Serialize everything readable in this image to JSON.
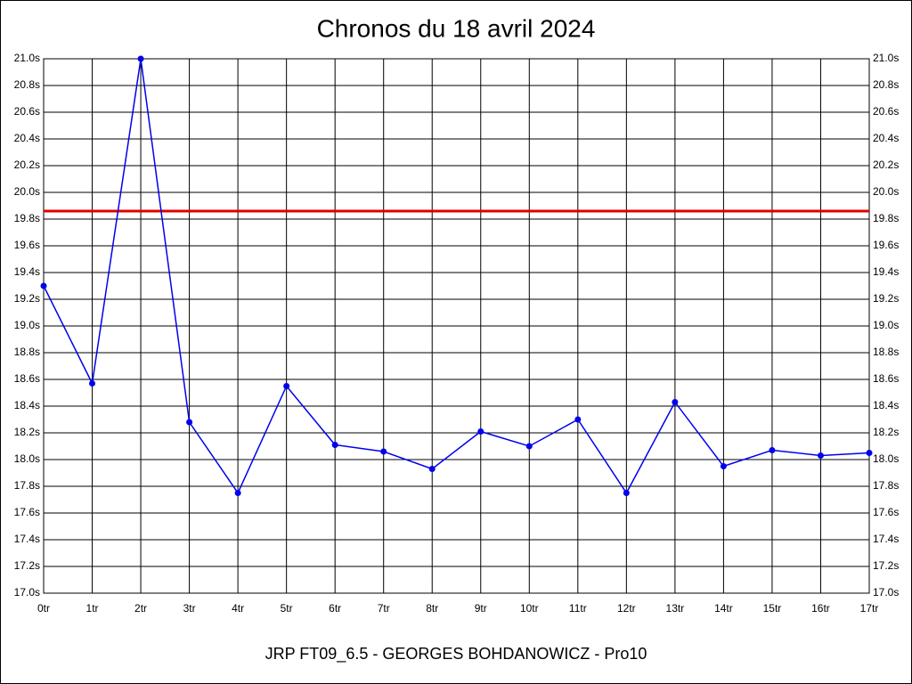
{
  "chart_data": {
    "type": "line",
    "title": "Chronos du 18 avril 2024",
    "xlabel": "JRP FT09_6.5 - GEORGES BOHDANOWICZ - Pro10",
    "categories": [
      "0tr",
      "1tr",
      "2tr",
      "3tr",
      "4tr",
      "5tr",
      "6tr",
      "7tr",
      "8tr",
      "9tr",
      "10tr",
      "11tr",
      "12tr",
      "13tr",
      "14tr",
      "15tr",
      "16tr",
      "17tr"
    ],
    "series": [
      {
        "color": "#0000ee",
        "values": [
          19.3,
          18.57,
          21.0,
          18.28,
          17.75,
          18.55,
          18.11,
          18.06,
          17.93,
          18.21,
          18.1,
          18.3,
          17.75,
          18.43,
          17.95,
          18.07,
          18.03,
          18.05
        ]
      }
    ],
    "reference_line": {
      "value": 19.86,
      "color": "#e00000"
    },
    "ylim": [
      17.0,
      21.0
    ],
    "yticks": [
      {
        "value": 17.0,
        "label": "17.0s"
      },
      {
        "value": 17.2,
        "label": "17.2s"
      },
      {
        "value": 17.4,
        "label": "17.4s"
      },
      {
        "value": 17.6,
        "label": "17.6s"
      },
      {
        "value": 17.8,
        "label": "17.8s"
      },
      {
        "value": 18.0,
        "label": "18.0s"
      },
      {
        "value": 18.2,
        "label": "18.2s"
      },
      {
        "value": 18.4,
        "label": "18.4s"
      },
      {
        "value": 18.6,
        "label": "18.6s"
      },
      {
        "value": 18.8,
        "label": "18.8s"
      },
      {
        "value": 19.0,
        "label": "19.0s"
      },
      {
        "value": 19.2,
        "label": "19.2s"
      },
      {
        "value": 19.4,
        "label": "19.4s"
      },
      {
        "value": 19.6,
        "label": "19.6s"
      },
      {
        "value": 19.8,
        "label": "19.8s"
      },
      {
        "value": 20.0,
        "label": "20.0s"
      },
      {
        "value": 20.2,
        "label": "20.2s"
      },
      {
        "value": 20.4,
        "label": "20.4s"
      },
      {
        "value": 20.6,
        "label": "20.6s"
      },
      {
        "value": 20.8,
        "label": "20.8s"
      },
      {
        "value": 21.0,
        "label": "21.0s"
      }
    ],
    "grid": true
  }
}
